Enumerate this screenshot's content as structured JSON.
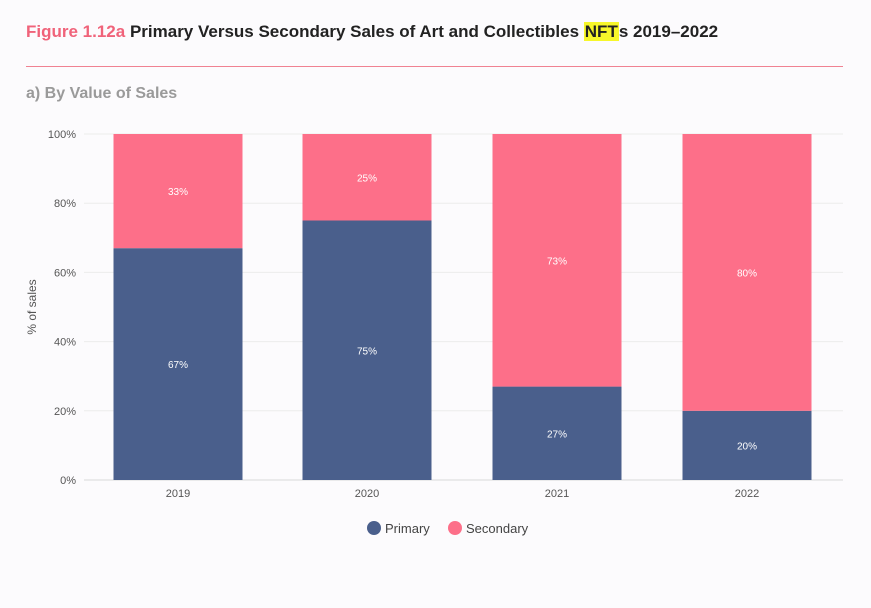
{
  "header": {
    "figure_number": "Figure 1.12a",
    "title_before": " Primary Versus Secondary Sales of Art and Collectibles ",
    "title_highlight": "NFT",
    "title_after": "s 2019–2022",
    "subtitle": "a) By Value of Sales",
    "highlight_color": "#f7f72a",
    "figure_number_color": "#f0637a"
  },
  "chart_data": {
    "type": "bar",
    "stacked": true,
    "categories": [
      "2019",
      "2020",
      "2021",
      "2022"
    ],
    "series": [
      {
        "name": "Primary",
        "values": [
          67,
          75,
          27,
          20
        ],
        "labels": [
          "67%",
          "75%",
          "27%",
          "20%"
        ],
        "color": "#4a5f8c"
      },
      {
        "name": "Secondary",
        "values": [
          33,
          25,
          73,
          80
        ],
        "labels": [
          "33%",
          "25%",
          "73%",
          "80%"
        ],
        "color": "#fd6f89"
      }
    ],
    "ylabel": "% of sales",
    "xlabel": "",
    "ylim": [
      0,
      100
    ],
    "yticks": [
      0,
      20,
      40,
      60,
      80,
      100
    ],
    "ytick_labels": [
      "0%",
      "20%",
      "40%",
      "60%",
      "80%",
      "100%"
    ],
    "grid": true,
    "legend_position": "bottom-center"
  }
}
